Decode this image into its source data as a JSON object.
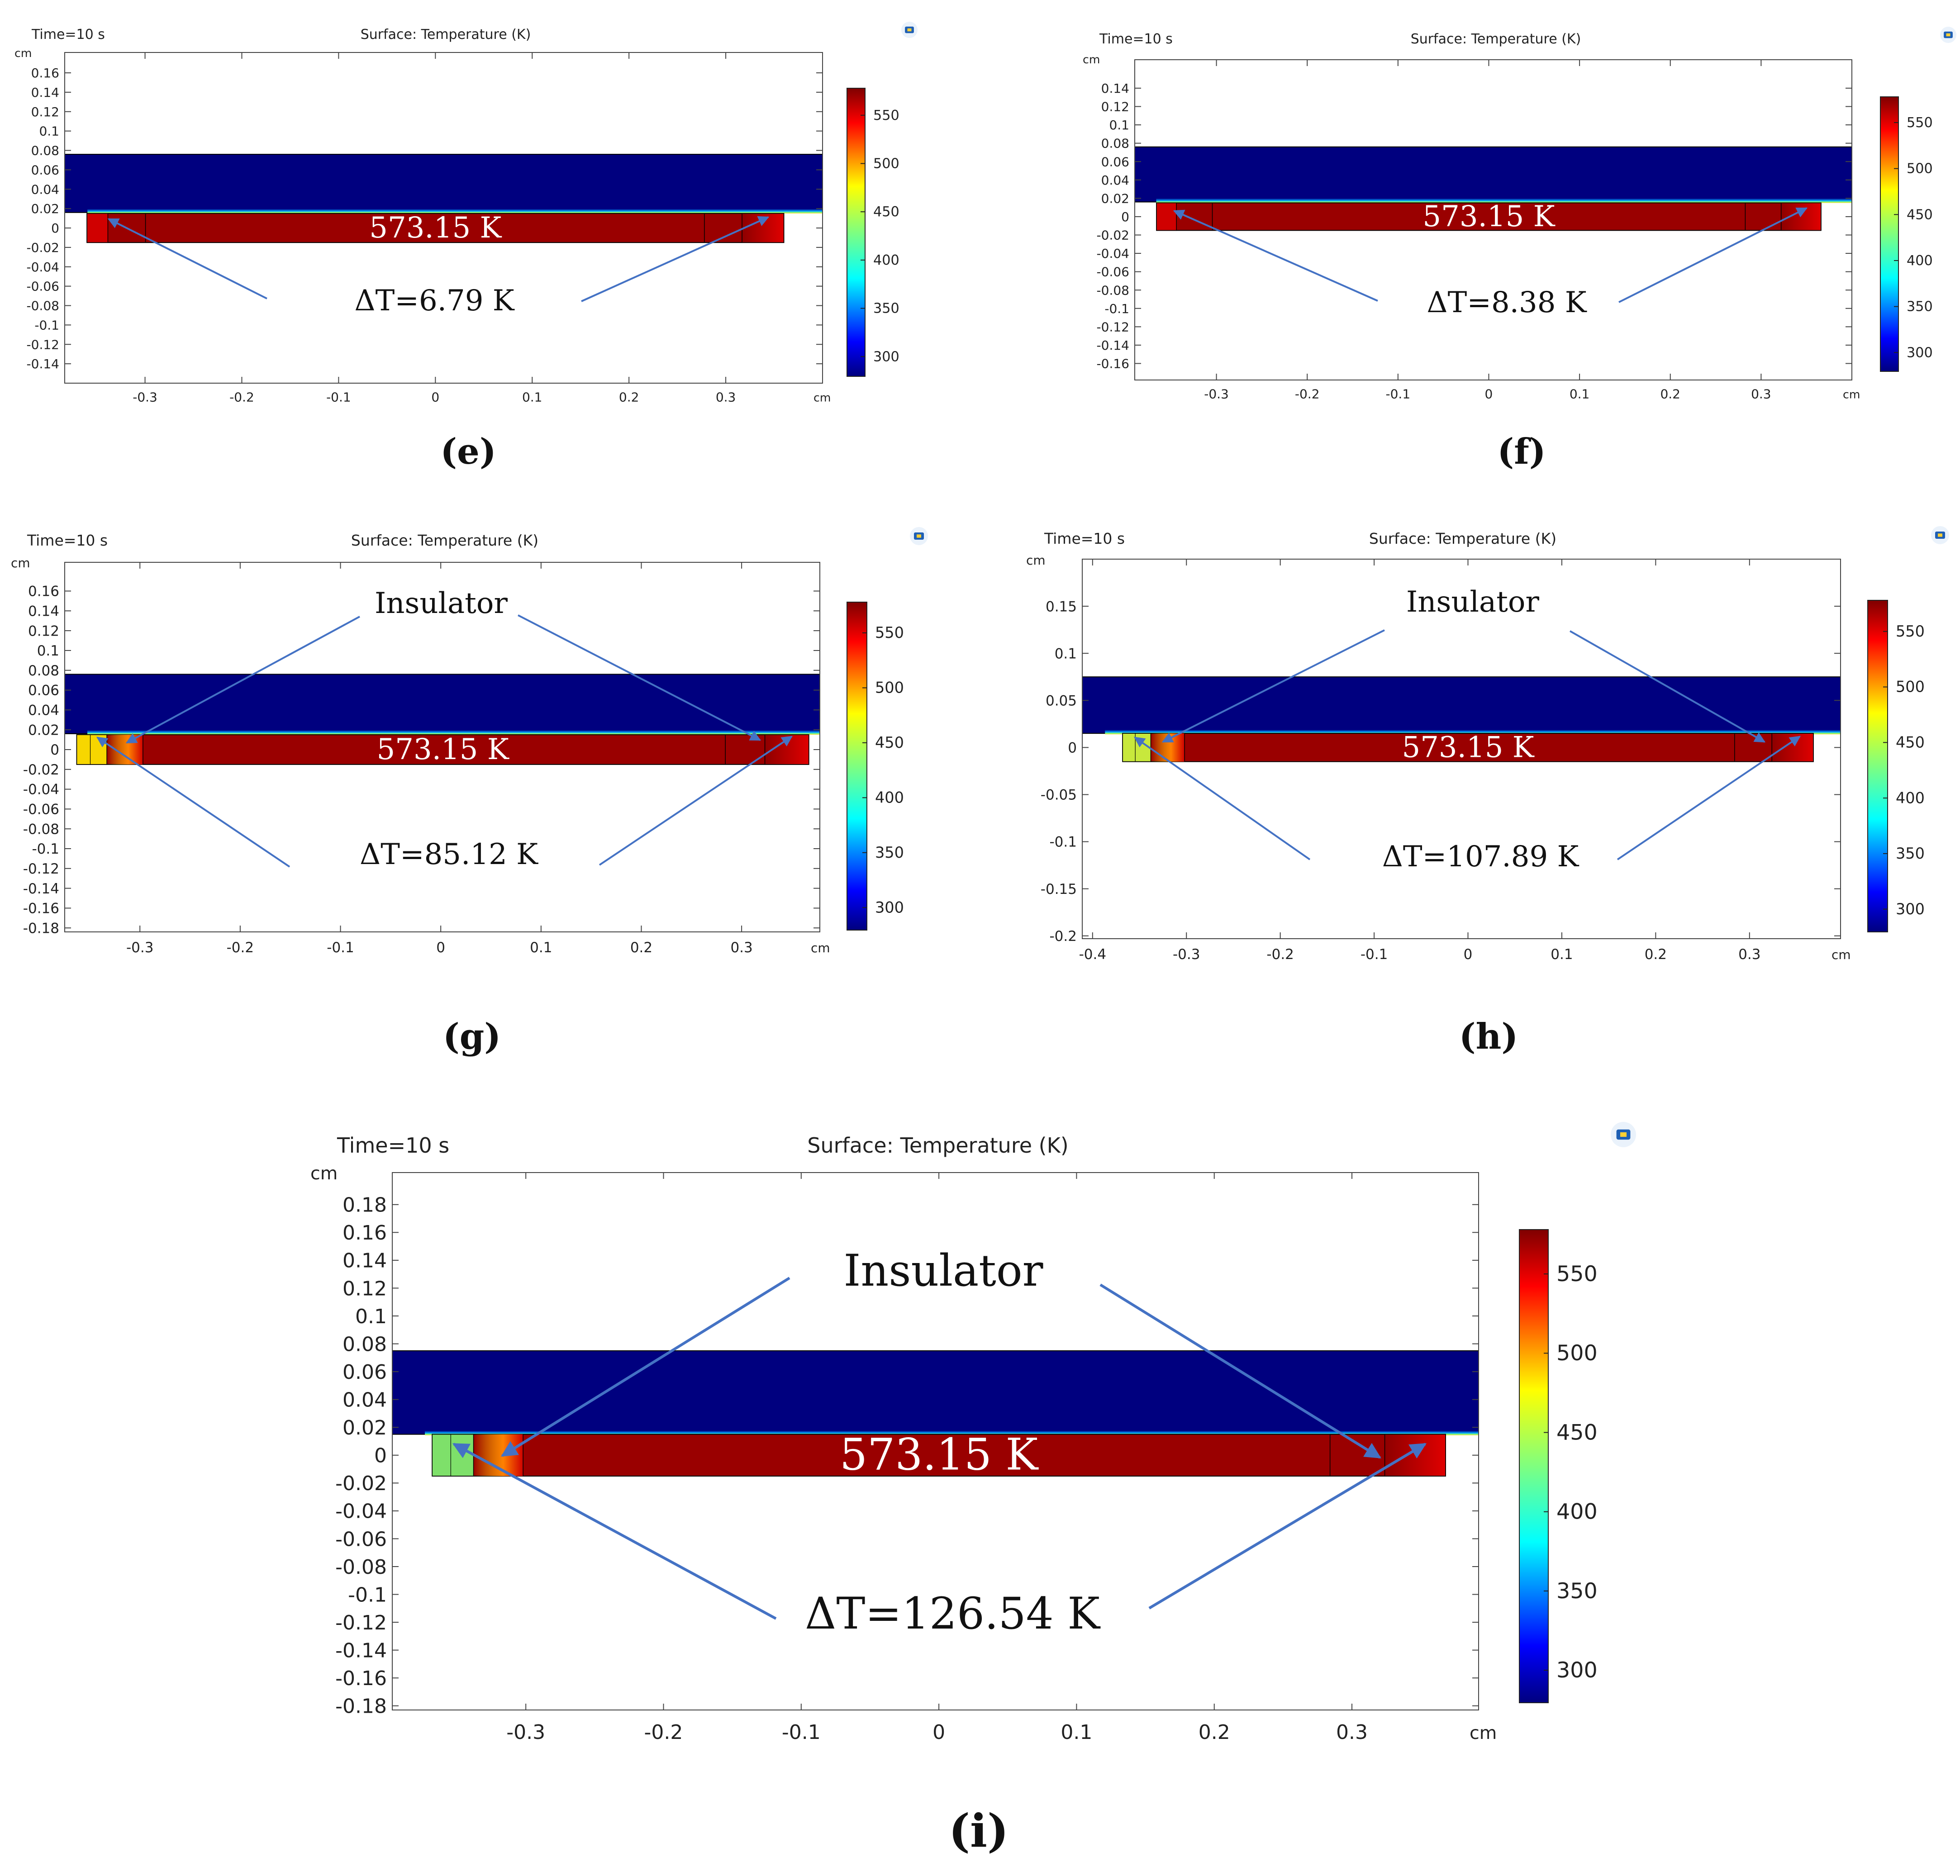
{
  "chart_data": [
    {
      "id": "e",
      "type": "heatmap",
      "panel_label": "(e)",
      "time_label": "Time=10 s",
      "title": "Surface: Temperature (K)",
      "axis_unit": "cm",
      "x_ticks": [
        -0.3,
        -0.2,
        -0.1,
        0,
        0.1,
        0.2,
        0.3
      ],
      "y_ticks": [
        0.16,
        0.14,
        0.12,
        0.1,
        0.08,
        0.06,
        0.04,
        0.02,
        0,
        -0.02,
        -0.04,
        -0.06,
        -0.08,
        -0.1,
        -0.12,
        -0.14
      ],
      "xlim": [
        -0.383,
        0.4
      ],
      "ylim": [
        -0.16,
        0.181
      ],
      "colorbar_ticks": [
        550,
        500,
        450,
        400,
        350,
        300
      ],
      "colorbar_range": [
        279.5,
        578
      ],
      "strip_layer": [
        0.016,
        0.076
      ],
      "heater": {
        "x": [
          -0.36,
          0.36
        ],
        "y": [
          -0.015,
          0.015
        ]
      },
      "insulator": {
        "width": 0,
        "color": "#ff2200"
      },
      "heater_label": "573.15 K",
      "delta_label": "ΔT=6.79 K",
      "insulator_label": ""
    },
    {
      "id": "f",
      "type": "heatmap",
      "panel_label": "(f)",
      "time_label": "Time=10 s",
      "title": "Surface: Temperature (K)",
      "axis_unit": "cm",
      "x_ticks": [
        -0.3,
        -0.2,
        -0.1,
        0,
        0.1,
        0.2,
        0.3
      ],
      "y_ticks": [
        0.14,
        0.12,
        0.1,
        0.08,
        0.06,
        0.04,
        0.02,
        0,
        -0.02,
        -0.04,
        -0.06,
        -0.08,
        -0.1,
        -0.12,
        -0.14,
        -0.16
      ],
      "xlim": [
        -0.39,
        0.4
      ],
      "ylim": [
        -0.178,
        0.171
      ],
      "colorbar_ticks": [
        550,
        500,
        450,
        400,
        350,
        300
      ],
      "colorbar_range": [
        279.5,
        578
      ],
      "strip_layer": [
        0.016,
        0.076
      ],
      "heater": {
        "x": [
          -0.366,
          0.366
        ],
        "y": [
          -0.015,
          0.015
        ]
      },
      "insulator": {
        "width": 0,
        "color": "#ff2200"
      },
      "heater_label": "573.15 K",
      "delta_label": "ΔT=8.38 K",
      "insulator_label": ""
    },
    {
      "id": "g",
      "type": "heatmap",
      "panel_label": "(g)",
      "time_label": "Time=10 s",
      "title": "Surface: Temperature (K)",
      "axis_unit": "cm",
      "x_ticks": [
        -0.3,
        -0.2,
        -0.1,
        0,
        0.1,
        0.2,
        0.3
      ],
      "y_ticks": [
        0.16,
        0.14,
        0.12,
        0.1,
        0.08,
        0.06,
        0.04,
        0.02,
        0,
        -0.02,
        -0.04,
        -0.06,
        -0.08,
        -0.1,
        -0.12,
        -0.14,
        -0.16,
        -0.18
      ],
      "xlim": [
        -0.375,
        0.378
      ],
      "ylim": [
        -0.184,
        0.189
      ],
      "colorbar_ticks": [
        550,
        500,
        450,
        400,
        350,
        300
      ],
      "colorbar_range": [
        279.5,
        578
      ],
      "strip_layer": [
        0.016,
        0.076
      ],
      "heater": {
        "x": [
          -0.363,
          0.367
        ],
        "y": [
          -0.015,
          0.015
        ]
      },
      "insulator": {
        "width": 0.03,
        "color": "#f7d600"
      },
      "heater_label": "573.15 K",
      "delta_label": "ΔT=85.12 K",
      "insulator_label": "Insulator"
    },
    {
      "id": "h",
      "type": "heatmap",
      "panel_label": "(h)",
      "time_label": "Time=10 s",
      "title": "Surface: Temperature (K)",
      "axis_unit": "cm",
      "x_ticks": [
        -0.4,
        -0.3,
        -0.2,
        -0.1,
        0,
        0.1,
        0.2,
        0.3
      ],
      "y_ticks": [
        0.15,
        0.1,
        0.05,
        0,
        -0.05,
        -0.1,
        -0.15,
        -0.2
      ],
      "xlim": [
        -0.411,
        0.397
      ],
      "ylim": [
        -0.203,
        0.2
      ],
      "colorbar_ticks": [
        550,
        500,
        450,
        400,
        350,
        300
      ],
      "colorbar_range": [
        279.5,
        578
      ],
      "strip_layer": [
        0.015,
        0.075
      ],
      "heater": {
        "x": [
          -0.368,
          0.368
        ],
        "y": [
          -0.015,
          0.015
        ]
      },
      "insulator": {
        "width": 0.03,
        "color": "#c8e83c"
      },
      "heater_label": "573.15 K",
      "delta_label": "ΔT=107.89 K",
      "insulator_label": "Insulator"
    },
    {
      "id": "i",
      "type": "heatmap",
      "panel_label": "(i)",
      "time_label": "Time=10 s",
      "title": "Surface: Temperature (K)",
      "axis_unit": "cm",
      "x_ticks": [
        -0.3,
        -0.2,
        -0.1,
        0,
        0.1,
        0.2,
        0.3
      ],
      "y_ticks": [
        0.18,
        0.16,
        0.14,
        0.12,
        0.1,
        0.08,
        0.06,
        0.04,
        0.02,
        0,
        -0.02,
        -0.04,
        -0.06,
        -0.08,
        -0.1,
        -0.12,
        -0.14,
        -0.16,
        -0.18
      ],
      "xlim": [
        -0.397,
        0.392
      ],
      "ylim": [
        -0.183,
        0.203
      ],
      "colorbar_ticks": [
        550,
        500,
        450,
        400,
        350,
        300
      ],
      "colorbar_range": [
        279.5,
        578
      ],
      "strip_layer": [
        0.015,
        0.075
      ],
      "heater": {
        "x": [
          -0.368,
          0.368
        ],
        "y": [
          -0.015,
          0.015
        ]
      },
      "insulator": {
        "width": 0.03,
        "color": "#7ee06a"
      },
      "heater_label": "573.15 K",
      "delta_label": "ΔT=126.54 K",
      "insulator_label": "Insulator"
    }
  ]
}
